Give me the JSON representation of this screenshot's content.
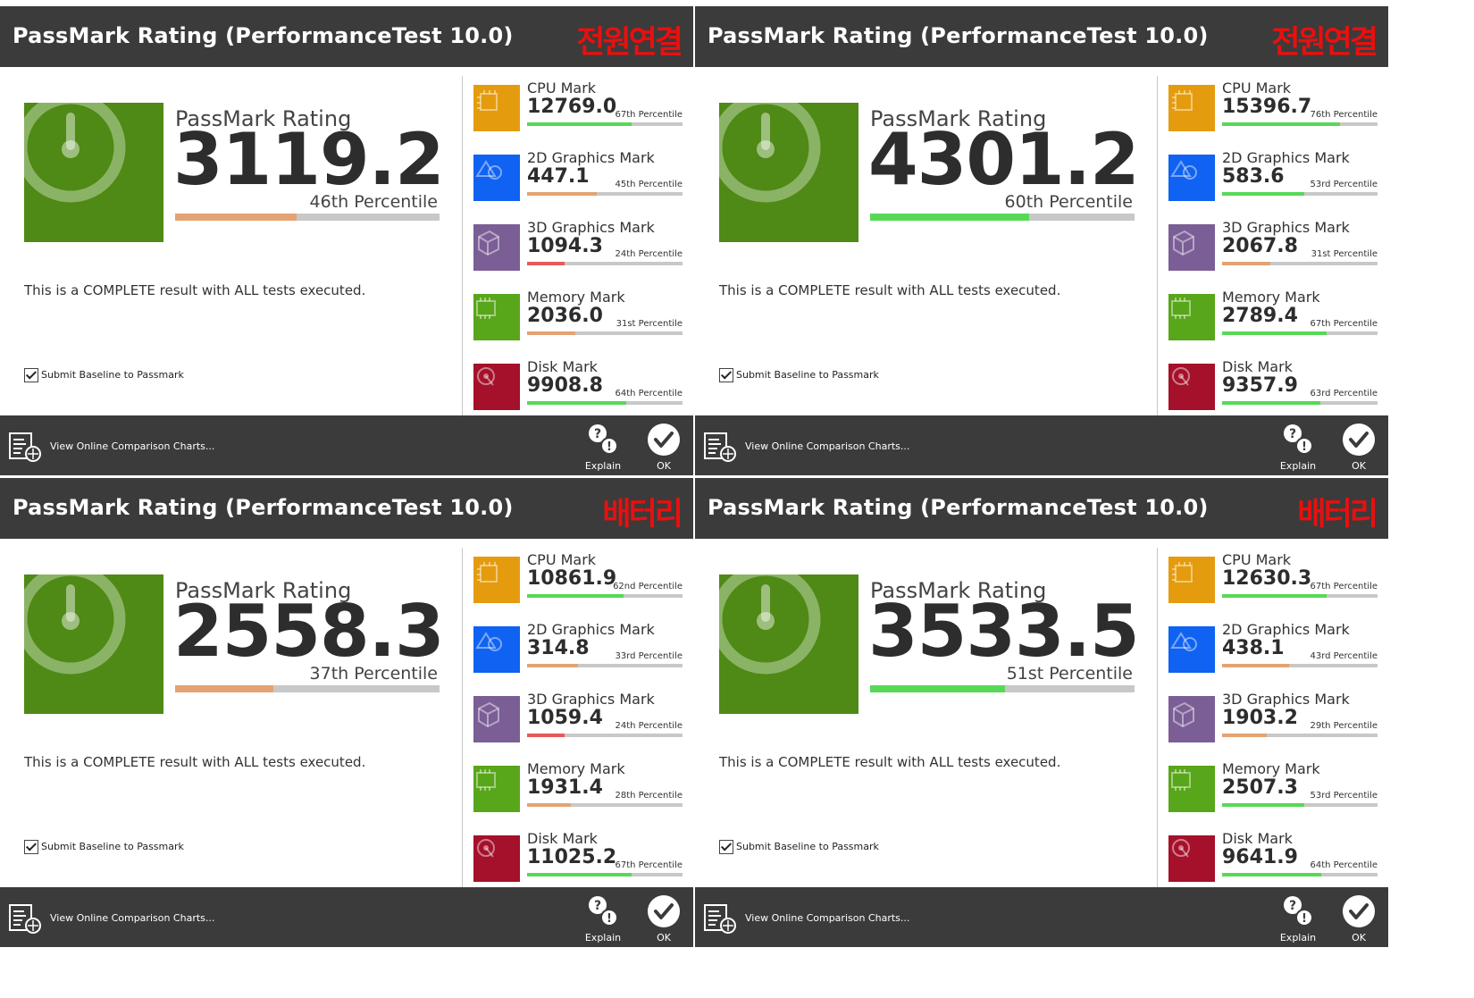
{
  "colors": {
    "titlebar_bg": "#3b3b3b",
    "tag_red": "#e8100f",
    "rating_icon_green": "#4e8a15",
    "cpu_orange": "#e49c0e",
    "g2d_blue": "#0f62f2",
    "g3d_purple": "#7a5e95",
    "memory_green": "#58a619",
    "disk_red": "#a5102a",
    "bar_track": "#c8c8c8",
    "bar_green": "#57d857",
    "bar_orange": "#e3a372",
    "bar_red": "#e65a5a"
  },
  "panels": [
    {
      "title": "PassMark Rating (PerformanceTest 10.0)",
      "tag": "전원연결",
      "rating_label": "PassMark Rating",
      "rating_value": "3119.2",
      "rating_percentile": "46th Percentile",
      "rating_percent": 46,
      "rating_bar_color": "#e3a372",
      "complete_text": "This is a COMPLETE result with ALL tests executed.",
      "submit_label": "Submit Baseline to Passmark",
      "submit_checked": true,
      "marks": [
        {
          "icon": "cpu-chip-icon",
          "color": "#e49c0e",
          "label": "CPU Mark",
          "value": "12769.0",
          "percentile": "67th Percentile",
          "percent": 67,
          "bar_color": "#57d857"
        },
        {
          "icon": "2d-shapes-icon",
          "color": "#0f62f2",
          "label": "2D Graphics Mark",
          "value": "447.1",
          "percentile": "45th Percentile",
          "percent": 45,
          "bar_color": "#e3a372"
        },
        {
          "icon": "3d-cube-icon",
          "color": "#7a5e95",
          "label": "3D Graphics Mark",
          "value": "1094.3",
          "percentile": "24th Percentile",
          "percent": 24,
          "bar_color": "#e65a5a"
        },
        {
          "icon": "memory-chip-icon",
          "color": "#58a619",
          "label": "Memory Mark",
          "value": "2036.0",
          "percentile": "31st Percentile",
          "percent": 31,
          "bar_color": "#e3a372"
        },
        {
          "icon": "disk-drive-icon",
          "color": "#a5102a",
          "label": "Disk Mark",
          "value": "9908.8",
          "percentile": "64th Percentile",
          "percent": 64,
          "bar_color": "#57d857"
        }
      ],
      "footer": {
        "charts_label": "View Online Comparison Charts...",
        "explain_label": "Explain",
        "ok_label": "OK"
      }
    },
    {
      "title": "PassMark Rating (PerformanceTest 10.0)",
      "tag": "전원연결",
      "rating_label": "PassMark Rating",
      "rating_value": "4301.2",
      "rating_percentile": "60th Percentile",
      "rating_percent": 60,
      "rating_bar_color": "#57d857",
      "complete_text": "This is a COMPLETE result with ALL tests executed.",
      "submit_label": "Submit Baseline to Passmark",
      "submit_checked": true,
      "marks": [
        {
          "icon": "cpu-chip-icon",
          "color": "#e49c0e",
          "label": "CPU Mark",
          "value": "15396.7",
          "percentile": "76th Percentile",
          "percent": 76,
          "bar_color": "#57d857"
        },
        {
          "icon": "2d-shapes-icon",
          "color": "#0f62f2",
          "label": "2D Graphics Mark",
          "value": "583.6",
          "percentile": "53rd Percentile",
          "percent": 53,
          "bar_color": "#57d857"
        },
        {
          "icon": "3d-cube-icon",
          "color": "#7a5e95",
          "label": "3D Graphics Mark",
          "value": "2067.8",
          "percentile": "31st Percentile",
          "percent": 31,
          "bar_color": "#e3a372"
        },
        {
          "icon": "memory-chip-icon",
          "color": "#58a619",
          "label": "Memory Mark",
          "value": "2789.4",
          "percentile": "67th Percentile",
          "percent": 67,
          "bar_color": "#57d857"
        },
        {
          "icon": "disk-drive-icon",
          "color": "#a5102a",
          "label": "Disk Mark",
          "value": "9357.9",
          "percentile": "63rd Percentile",
          "percent": 63,
          "bar_color": "#57d857"
        }
      ],
      "footer": {
        "charts_label": "View Online Comparison Charts...",
        "explain_label": "Explain",
        "ok_label": "OK"
      }
    },
    {
      "title": "PassMark Rating (PerformanceTest 10.0)",
      "tag": "배터리",
      "rating_label": "PassMark Rating",
      "rating_value": "2558.3",
      "rating_percentile": "37th Percentile",
      "rating_percent": 37,
      "rating_bar_color": "#e3a372",
      "complete_text": "This is a COMPLETE result with ALL tests executed.",
      "submit_label": "Submit Baseline to Passmark",
      "submit_checked": true,
      "marks": [
        {
          "icon": "cpu-chip-icon",
          "color": "#e49c0e",
          "label": "CPU Mark",
          "value": "10861.9",
          "percentile": "62nd Percentile",
          "percent": 62,
          "bar_color": "#57d857"
        },
        {
          "icon": "2d-shapes-icon",
          "color": "#0f62f2",
          "label": "2D Graphics Mark",
          "value": "314.8",
          "percentile": "33rd Percentile",
          "percent": 33,
          "bar_color": "#e3a372"
        },
        {
          "icon": "3d-cube-icon",
          "color": "#7a5e95",
          "label": "3D Graphics Mark",
          "value": "1059.4",
          "percentile": "24th Percentile",
          "percent": 24,
          "bar_color": "#e65a5a"
        },
        {
          "icon": "memory-chip-icon",
          "color": "#58a619",
          "label": "Memory Mark",
          "value": "1931.4",
          "percentile": "28th Percentile",
          "percent": 28,
          "bar_color": "#e3a372"
        },
        {
          "icon": "disk-drive-icon",
          "color": "#a5102a",
          "label": "Disk Mark",
          "value": "11025.2",
          "percentile": "67th Percentile",
          "percent": 67,
          "bar_color": "#57d857"
        }
      ],
      "footer": {
        "charts_label": "View Online Comparison Charts...",
        "explain_label": "Explain",
        "ok_label": "OK"
      }
    },
    {
      "title": "PassMark Rating (PerformanceTest 10.0)",
      "tag": "배터리",
      "rating_label": "PassMark Rating",
      "rating_value": "3533.5",
      "rating_percentile": "51st Percentile",
      "rating_percent": 51,
      "rating_bar_color": "#57d857",
      "complete_text": "This is a COMPLETE result with ALL tests executed.",
      "submit_label": "Submit Baseline to Passmark",
      "submit_checked": true,
      "marks": [
        {
          "icon": "cpu-chip-icon",
          "color": "#e49c0e",
          "label": "CPU Mark",
          "value": "12630.3",
          "percentile": "67th Percentile",
          "percent": 67,
          "bar_color": "#57d857"
        },
        {
          "icon": "2d-shapes-icon",
          "color": "#0f62f2",
          "label": "2D Graphics Mark",
          "value": "438.1",
          "percentile": "43rd Percentile",
          "percent": 43,
          "bar_color": "#e3a372"
        },
        {
          "icon": "3d-cube-icon",
          "color": "#7a5e95",
          "label": "3D Graphics Mark",
          "value": "1903.2",
          "percentile": "29th Percentile",
          "percent": 29,
          "bar_color": "#e3a372"
        },
        {
          "icon": "memory-chip-icon",
          "color": "#58a619",
          "label": "Memory Mark",
          "value": "2507.3",
          "percentile": "53rd Percentile",
          "percent": 53,
          "bar_color": "#57d857"
        },
        {
          "icon": "disk-drive-icon",
          "color": "#a5102a",
          "label": "Disk Mark",
          "value": "9641.9",
          "percentile": "64th Percentile",
          "percent": 64,
          "bar_color": "#57d857"
        }
      ],
      "footer": {
        "charts_label": "View Online Comparison Charts...",
        "explain_label": "Explain",
        "ok_label": "OK"
      }
    }
  ]
}
